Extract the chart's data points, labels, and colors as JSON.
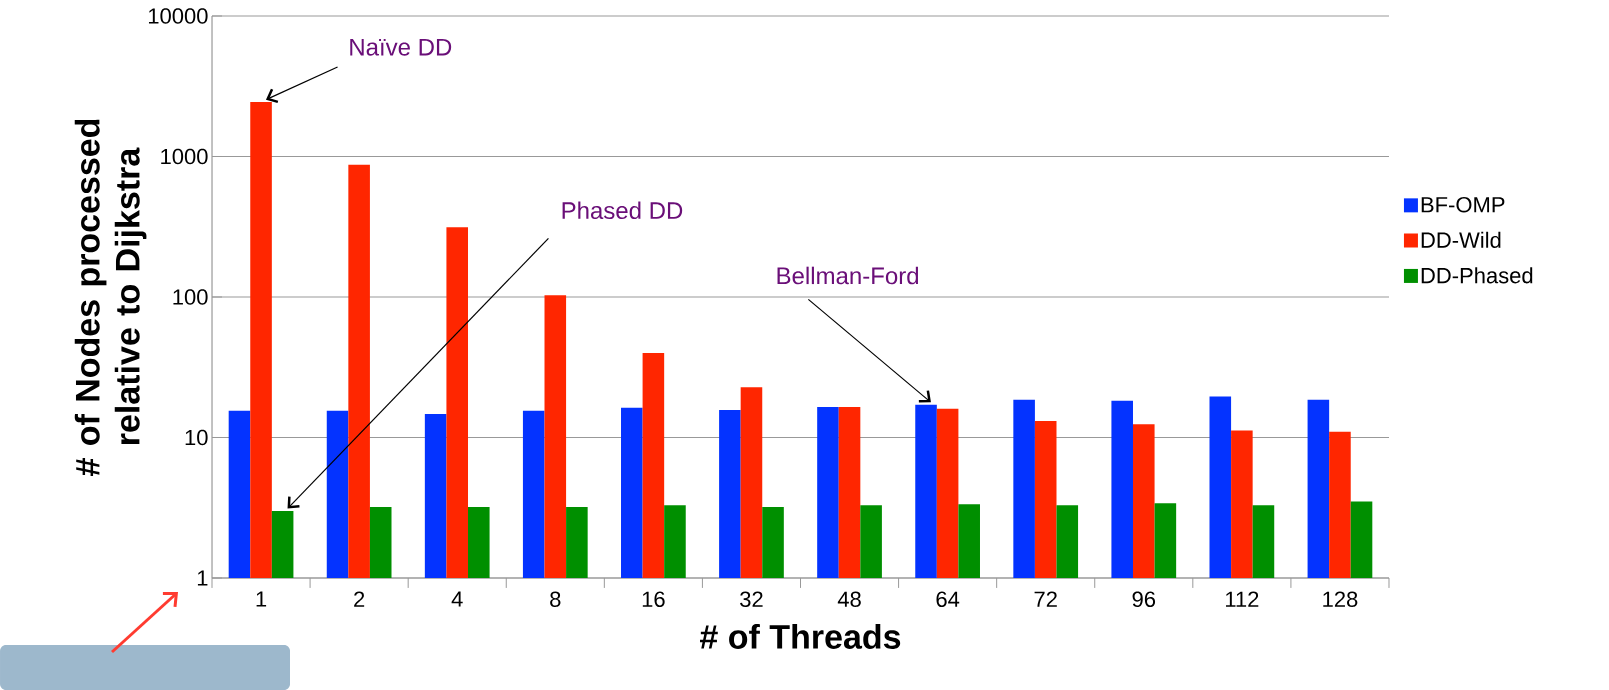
{
  "chart_data": {
    "type": "bar",
    "xlabel": "# of Threads",
    "ylabel": "# of Nodes processed relative to Dijkstra",
    "categories": [
      "1",
      "2",
      "4",
      "8",
      "16",
      "32",
      "48",
      "64",
      "72",
      "96",
      "112",
      "128"
    ],
    "series": [
      {
        "name": "BF-OMP",
        "color": "#0433ff",
        "values": [
          15.5,
          15.5,
          14.7,
          15.5,
          16.3,
          15.7,
          16.5,
          17.1,
          18.6,
          18.3,
          19.6,
          18.6
        ]
      },
      {
        "name": "DD-Wild",
        "color": "#ff2600",
        "values": [
          2440,
          875,
          314,
          103,
          40,
          22.8,
          16.5,
          16,
          13.1,
          12.4,
          11.2,
          11
        ]
      },
      {
        "name": "DD-Phased",
        "color": "#008f00",
        "values": [
          3.0,
          3.2,
          3.2,
          3.2,
          3.3,
          3.2,
          3.3,
          3.35,
          3.3,
          3.4,
          3.3,
          3.5
        ]
      }
    ],
    "log": "y",
    "ylim": [
      1,
      10000
    ],
    "yticks": [
      1,
      10,
      100,
      1000,
      10000
    ],
    "grid": "y",
    "legend": "right",
    "annotations": [
      {
        "text": "Naïve DD",
        "x": "1",
        "y": 2440
      },
      "Phased DD",
      "Bellman-Ford"
    ]
  }
}
